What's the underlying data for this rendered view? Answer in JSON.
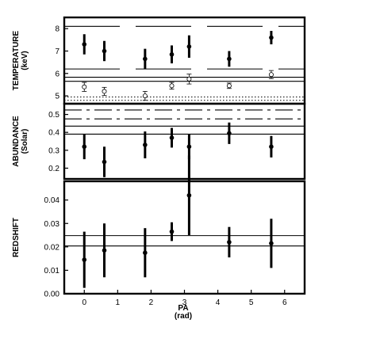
{
  "chart_data": [
    {
      "type": "scatter",
      "ylabel": "TEMPERATURE",
      "ylabel_unit": "(keV)",
      "ylim": [
        4.65,
        8.5
      ],
      "yticks": [
        5,
        6,
        7,
        8
      ],
      "xlim": [
        -0.6,
        6.6
      ],
      "series": [
        {
          "style": "filled",
          "x": [
            0.0,
            0.6,
            1.82,
            2.62,
            3.14,
            4.34,
            5.6
          ],
          "y": [
            7.3,
            7.0,
            6.65,
            6.85,
            7.2,
            6.65,
            7.6
          ],
          "yerr": [
            0.45,
            0.45,
            0.45,
            0.4,
            0.5,
            0.35,
            0.3
          ]
        },
        {
          "style": "open",
          "x": [
            0.0,
            0.6,
            1.82,
            2.62,
            3.14,
            4.34,
            5.6
          ],
          "y": [
            5.4,
            5.2,
            5.0,
            5.45,
            5.75,
            5.45,
            5.95
          ],
          "yerr": [
            0.2,
            0.18,
            0.2,
            0.15,
            0.22,
            0.12,
            0.18
          ]
        }
      ],
      "hlines": [
        {
          "y": 8.1,
          "style": "longdash"
        },
        {
          "y": 6.2,
          "style": "longdash"
        },
        {
          "y": 5.83,
          "style": "solid"
        },
        {
          "y": 5.65,
          "style": "solid"
        },
        {
          "y": 4.95,
          "style": "dotted"
        },
        {
          "y": 4.8,
          "style": "dotted"
        }
      ]
    },
    {
      "type": "scatter",
      "ylabel": "ABUNDANCE",
      "ylabel_unit": "(Solar)",
      "ylim": [
        0.14,
        0.56
      ],
      "yticks": [
        0.2,
        0.3,
        0.4,
        0.5
      ],
      "xlim": [
        -0.6,
        6.6
      ],
      "series": [
        {
          "style": "filled",
          "x": [
            0.0,
            0.6,
            1.82,
            2.62,
            3.14,
            4.34,
            5.6
          ],
          "y": [
            0.32,
            0.235,
            0.33,
            0.37,
            0.32,
            0.395,
            0.32
          ],
          "yerr": [
            0.07,
            0.085,
            0.075,
            0.055,
            0.07,
            0.06,
            0.06
          ]
        }
      ],
      "hlines": [
        {
          "y": 0.525,
          "style": "dashdot"
        },
        {
          "y": 0.475,
          "style": "dashdot"
        },
        {
          "y": 0.435,
          "style": "solid"
        },
        {
          "y": 0.39,
          "style": "solid"
        }
      ]
    },
    {
      "type": "scatter",
      "ylabel": "REDSHIFT",
      "xlabel": "PA",
      "xlabel_unit": "(rad)",
      "ylim": [
        0.0,
        0.048
      ],
      "yticks": [
        0.0,
        0.01,
        0.02,
        0.03,
        0.04
      ],
      "ytick_labels": [
        "0.00",
        "0.01",
        "0.02",
        "0.03",
        "0.04"
      ],
      "xlim": [
        -0.6,
        6.6
      ],
      "xticks": [
        0,
        1,
        2,
        3,
        4,
        5,
        6
      ],
      "series": [
        {
          "style": "filled",
          "x": [
            0.0,
            0.6,
            1.82,
            2.62,
            3.14,
            4.34,
            5.6
          ],
          "y": [
            0.0145,
            0.0185,
            0.0175,
            0.0265,
            0.042,
            0.022,
            0.0215
          ],
          "yerr": [
            0.012,
            0.0115,
            0.0105,
            0.004,
            0.017,
            0.0065,
            0.0105
          ]
        }
      ],
      "hlines": [
        {
          "y": 0.0248,
          "style": "solid"
        },
        {
          "y": 0.0204,
          "style": "solid"
        }
      ]
    }
  ]
}
